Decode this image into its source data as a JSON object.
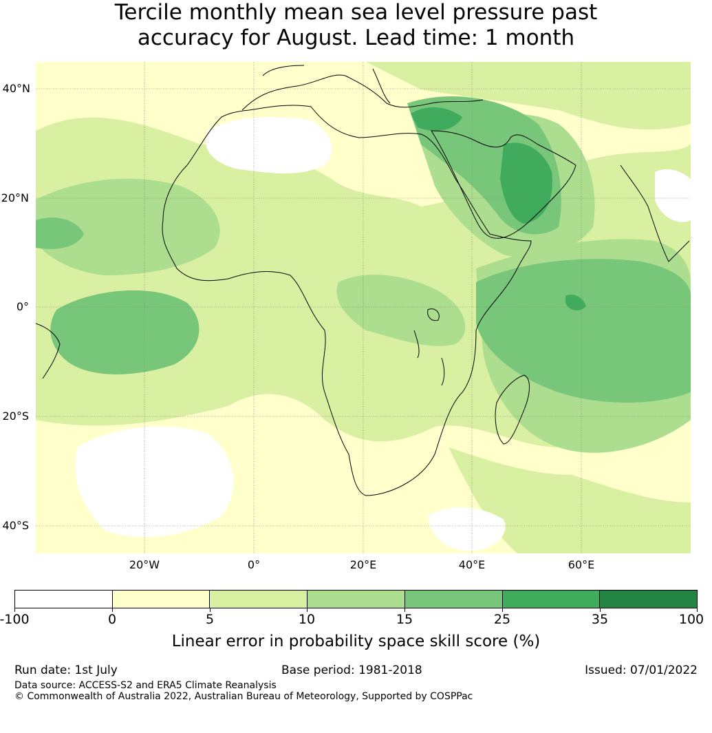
{
  "title": {
    "line1": "Tercile monthly mean sea level pressure past",
    "line2": "accuracy for August. Lead time: 1 month"
  },
  "map": {
    "lat_labels": [
      "40°N",
      "20°N",
      "0°",
      "20°S",
      "40°S"
    ],
    "lon_labels": [
      "20°W",
      "0°",
      "20°E",
      "40°E",
      "60°E"
    ]
  },
  "colorbar": {
    "tick_labels": [
      "-100",
      "0",
      "5",
      "10",
      "15",
      "25",
      "35",
      "100"
    ],
    "colors": [
      "#ffffff",
      "#ffffcc",
      "#d9f0a3",
      "#addd8e",
      "#78c679",
      "#41ab5d",
      "#238443"
    ],
    "label": "Linear error in probability space skill score (%)"
  },
  "footer": {
    "run_date": "Run date: 1st July",
    "base_period": "Base period: 1981-2018",
    "issued": "Issued: 07/01/2022",
    "data_source": "Data source: ACCESS-S2 and ERA5 Climate Reanalysis",
    "copyright": "© Commonwealth of Australia 2022, Australian Bureau of Meteorology, Supported by COSPPac"
  }
}
